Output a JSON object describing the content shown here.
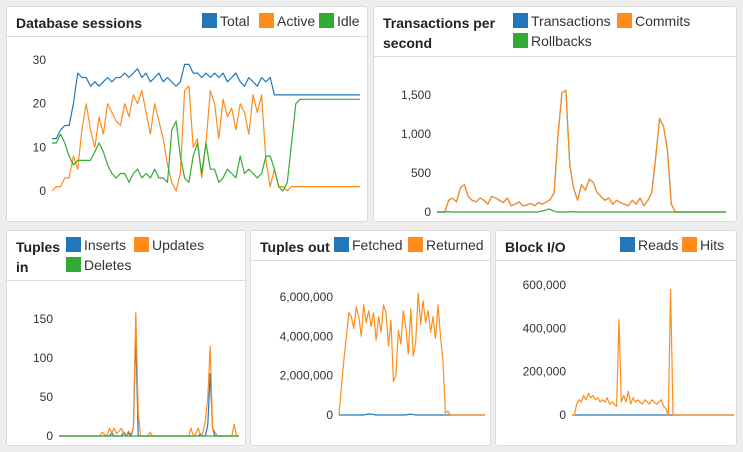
{
  "colors": {
    "blue": "#2277bb",
    "orange": "#ff8c1a",
    "green": "#33aa33"
  },
  "chart_data": [
    {
      "id": "sessions",
      "type": "line",
      "title": "Database sessions",
      "ylim": [
        0,
        30
      ],
      "yticks": [
        {
          "v": 0,
          "label": "0"
        },
        {
          "v": 10,
          "label": "10"
        },
        {
          "v": 20,
          "label": "20"
        },
        {
          "v": 30,
          "label": "30"
        }
      ],
      "series": [
        {
          "name": "Total",
          "color": "blue",
          "values": [
            12,
            12,
            14,
            15,
            15,
            20,
            27,
            26,
            26,
            24,
            25,
            24,
            25,
            26,
            25,
            26,
            26,
            27,
            26,
            27,
            28,
            26,
            27,
            25,
            26,
            27,
            25,
            26,
            25,
            24,
            25,
            29,
            29,
            27,
            27,
            26,
            27,
            26,
            27,
            26,
            27,
            25,
            26,
            27,
            25,
            24,
            26,
            25,
            24,
            26,
            25,
            26,
            22,
            22,
            22,
            22,
            22,
            22,
            22,
            22,
            22,
            22,
            22,
            22,
            22,
            22,
            22,
            22,
            22,
            22,
            22,
            22,
            22
          ]
        },
        {
          "name": "Active",
          "color": "orange",
          "values": [
            0,
            1,
            1,
            3,
            3,
            8,
            5,
            14,
            20,
            14,
            10,
            17,
            13,
            20,
            18,
            16,
            15,
            20,
            17,
            22,
            20,
            23,
            18,
            13,
            20,
            16,
            12,
            6,
            2,
            0,
            4,
            23,
            24,
            10,
            12,
            3,
            11,
            23,
            20,
            12,
            21,
            17,
            19,
            14,
            20,
            18,
            13,
            22,
            18,
            22,
            7,
            1,
            5,
            1,
            1,
            0,
            1,
            1,
            1,
            1,
            1,
            1,
            1,
            1,
            1,
            1,
            1,
            1,
            1,
            1,
            1,
            1,
            1
          ]
        },
        {
          "name": "Idle",
          "color": "green",
          "values": [
            11,
            11,
            13,
            11,
            8,
            6,
            7,
            7,
            7,
            7,
            9,
            11,
            9,
            6,
            4,
            3,
            4,
            4,
            2,
            4,
            5,
            3,
            4,
            3,
            5,
            3,
            3,
            2,
            14,
            16,
            8,
            3,
            2,
            8,
            11,
            4,
            11,
            5,
            5,
            2,
            3,
            5,
            4,
            3,
            8,
            4,
            5,
            4,
            3,
            4,
            8,
            8,
            5,
            1,
            0,
            2,
            11,
            20,
            21,
            21,
            21,
            21,
            21,
            21,
            21,
            21,
            21,
            21,
            21,
            21,
            21,
            21,
            21
          ]
        }
      ]
    },
    {
      "id": "transactions",
      "type": "line",
      "title": "Transactions per second",
      "ylim": [
        0,
        1500
      ],
      "yticks": [
        {
          "v": 0,
          "label": "0"
        },
        {
          "v": 500,
          "label": "500"
        },
        {
          "v": 1000,
          "label": "1,000"
        },
        {
          "v": 1500,
          "label": "1,500"
        }
      ],
      "series": [
        {
          "name": "Transactions",
          "color": "blue",
          "values": [
            0,
            0,
            0,
            150,
            180,
            130,
            310,
            350,
            200,
            150,
            130,
            180,
            150,
            100,
            200,
            180,
            150,
            120,
            180,
            80,
            100,
            130,
            80,
            90,
            110,
            80,
            120,
            100,
            130,
            160,
            250,
            1000,
            1530,
            1560,
            600,
            300,
            150,
            350,
            280,
            420,
            380,
            250,
            200,
            150,
            180,
            100,
            150,
            120,
            100,
            80,
            150,
            100,
            180,
            80,
            150,
            250,
            700,
            1200,
            1100,
            800,
            100,
            0,
            0,
            0,
            0,
            0,
            0,
            0,
            0,
            0,
            0,
            0,
            0,
            0,
            0
          ]
        },
        {
          "name": "Commits",
          "color": "orange",
          "values": [
            0,
            0,
            0,
            150,
            180,
            130,
            310,
            350,
            200,
            150,
            130,
            180,
            150,
            100,
            200,
            180,
            150,
            120,
            180,
            80,
            100,
            130,
            80,
            90,
            110,
            80,
            120,
            100,
            130,
            160,
            250,
            1000,
            1530,
            1560,
            600,
            300,
            150,
            350,
            280,
            420,
            380,
            250,
            200,
            150,
            180,
            100,
            150,
            120,
            100,
            80,
            150,
            100,
            180,
            80,
            150,
            250,
            700,
            1200,
            1100,
            800,
            100,
            0,
            0,
            0,
            0,
            0,
            0,
            0,
            0,
            0,
            0,
            0,
            0,
            0,
            0
          ]
        },
        {
          "name": "Rollbacks",
          "color": "green",
          "values": [
            0,
            0,
            0,
            5,
            0,
            0,
            0,
            0,
            0,
            0,
            0,
            0,
            0,
            0,
            0,
            0,
            0,
            0,
            0,
            0,
            0,
            0,
            0,
            0,
            0,
            0,
            0,
            10,
            20,
            40,
            20,
            0,
            0,
            0,
            0,
            5,
            0,
            0,
            0,
            0,
            0,
            0,
            0,
            0,
            0,
            0,
            0,
            0,
            0,
            0,
            0,
            0,
            0,
            0,
            0,
            0,
            0,
            0,
            0,
            0,
            0,
            0,
            0,
            0,
            0,
            0,
            0,
            0,
            0,
            0,
            0,
            0,
            0,
            0,
            0,
            0
          ]
        }
      ]
    },
    {
      "id": "tuples_in",
      "type": "line",
      "title": "Tuples in",
      "ylim": [
        0,
        150
      ],
      "yticks": [
        {
          "v": 0,
          "label": "0"
        },
        {
          "v": 50,
          "label": "50"
        },
        {
          "v": 100,
          "label": "100"
        },
        {
          "v": 150,
          "label": "150"
        }
      ],
      "series": [
        {
          "name": "Inserts",
          "color": "blue",
          "values": [
            0,
            0,
            0,
            0,
            0,
            0,
            0,
            0,
            0,
            0,
            0,
            0,
            0,
            0,
            0,
            0,
            0,
            0,
            0,
            0,
            0,
            0,
            4,
            0,
            0,
            0,
            0,
            5,
            0,
            4,
            0,
            10,
            130,
            0,
            0,
            0,
            0,
            0,
            0,
            0,
            0,
            0,
            0,
            0,
            0,
            0,
            0,
            0,
            0,
            0,
            0,
            0,
            0,
            0,
            0,
            0,
            0,
            0,
            0,
            3,
            0,
            0,
            15,
            80,
            10,
            0,
            0,
            0,
            0,
            0,
            0,
            0,
            0,
            0,
            0,
            0
          ]
        },
        {
          "name": "Updates",
          "color": "orange",
          "values": [
            0,
            0,
            0,
            0,
            0,
            0,
            0,
            0,
            0,
            0,
            0,
            0,
            0,
            0,
            0,
            0,
            0,
            0,
            5,
            2,
            0,
            10,
            4,
            10,
            3,
            6,
            10,
            3,
            0,
            6,
            2,
            10,
            158,
            30,
            0,
            0,
            0,
            0,
            5,
            0,
            0,
            0,
            0,
            0,
            0,
            0,
            0,
            0,
            0,
            0,
            0,
            0,
            0,
            0,
            0,
            10,
            0,
            3,
            10,
            0,
            5,
            20,
            50,
            115,
            10,
            5,
            0,
            0,
            0,
            0,
            0,
            0,
            0,
            15,
            0,
            0
          ]
        },
        {
          "name": "Deletes",
          "color": "green",
          "values": [
            0,
            0,
            0,
            0,
            0,
            0,
            0,
            0,
            0,
            0,
            0,
            0,
            0,
            0,
            0,
            0,
            0,
            0,
            0,
            0,
            0,
            0,
            0,
            0,
            0,
            0,
            0,
            0,
            0,
            0,
            0,
            0,
            0,
            0,
            0,
            0,
            0,
            0,
            0,
            0,
            0,
            0,
            0,
            0,
            0,
            0,
            0,
            0,
            0,
            0,
            0,
            0,
            0,
            0,
            0,
            0,
            0,
            0,
            0,
            0,
            0,
            0,
            0,
            0,
            0,
            0,
            0,
            0,
            0,
            0,
            0,
            0,
            0,
            0,
            0,
            0
          ]
        }
      ]
    },
    {
      "id": "tuples_out",
      "type": "line",
      "title": "Tuples out",
      "ylim": [
        0,
        6000000
      ],
      "yticks": [
        {
          "v": 0,
          "label": "0"
        },
        {
          "v": 2000000,
          "label": "2,000,000"
        },
        {
          "v": 4000000,
          "label": "4,000,000"
        },
        {
          "v": 6000000,
          "label": "6,000,000"
        }
      ],
      "series": [
        {
          "name": "Fetched",
          "color": "blue",
          "values": [
            0,
            0,
            0,
            0,
            0,
            0,
            0,
            0,
            0,
            0,
            0,
            30000,
            50000,
            40000,
            30000,
            0,
            0,
            0,
            0,
            0,
            0,
            0,
            0,
            0,
            0,
            0,
            0,
            0,
            30000,
            40000,
            30000,
            0,
            0,
            0,
            0,
            0,
            0,
            0,
            0,
            0,
            0,
            0,
            0,
            0,
            0,
            0,
            0,
            0,
            0,
            0,
            0,
            0,
            0,
            0,
            0,
            0,
            0,
            0,
            0,
            0
          ]
        },
        {
          "name": "Returned",
          "color": "orange",
          "values": [
            0,
            1500000,
            2800000,
            4000000,
            5200000,
            5000000,
            4400000,
            5500000,
            5000000,
            4000000,
            5600000,
            4700000,
            5300000,
            4500000,
            5200000,
            3800000,
            5000000,
            4200000,
            5600000,
            5200000,
            3500000,
            4800000,
            1700000,
            2000000,
            4300000,
            3600000,
            5300000,
            4500000,
            3100000,
            5400000,
            3000000,
            3700000,
            6200000,
            4600000,
            5800000,
            4700000,
            5300000,
            4200000,
            5000000,
            3900000,
            5600000,
            4000000,
            2800000,
            100000,
            200000,
            0,
            0,
            0,
            0,
            0,
            0,
            0,
            0,
            0,
            0,
            0,
            0,
            0,
            0,
            0
          ]
        }
      ]
    },
    {
      "id": "block_io",
      "type": "line",
      "title": "Block I/O",
      "ylim": [
        0,
        600000
      ],
      "yticks": [
        {
          "v": 0,
          "label": "0"
        },
        {
          "v": 200000,
          "label": "200,000"
        },
        {
          "v": 400000,
          "label": "400,000"
        },
        {
          "v": 600000,
          "label": "600,000"
        }
      ],
      "series": [
        {
          "name": "Reads",
          "color": "blue",
          "values": [
            0,
            0,
            0,
            0,
            0,
            0,
            0,
            0,
            0,
            0,
            0,
            0,
            0,
            0,
            0,
            0,
            0,
            0,
            0,
            0,
            0,
            0,
            0,
            0,
            0,
            0,
            0,
            0,
            0,
            0,
            0,
            0,
            0,
            0,
            0,
            0,
            0,
            0,
            0,
            0,
            0,
            0,
            0,
            0,
            0,
            0,
            0,
            0,
            0,
            0,
            0,
            0,
            0,
            0,
            0,
            0,
            0,
            0,
            0,
            0,
            0,
            0,
            0,
            0,
            0,
            0,
            0,
            0,
            0,
            0
          ]
        },
        {
          "name": "Hits",
          "color": "orange",
          "values": [
            0,
            0,
            50000,
            70000,
            60000,
            90000,
            70000,
            100000,
            80000,
            90000,
            70000,
            80000,
            60000,
            70000,
            60000,
            80000,
            50000,
            60000,
            50000,
            40000,
            440000,
            60000,
            90000,
            60000,
            110000,
            50000,
            80000,
            60000,
            70000,
            60000,
            50000,
            70000,
            60000,
            50000,
            70000,
            60000,
            50000,
            60000,
            70000,
            40000,
            30000,
            0,
            580000,
            0,
            0,
            0,
            0,
            0,
            0,
            0,
            0,
            0,
            0,
            0,
            0,
            0,
            0,
            0,
            0,
            0,
            0,
            0,
            0,
            0,
            0,
            0,
            0,
            0,
            0,
            0
          ]
        }
      ]
    }
  ]
}
